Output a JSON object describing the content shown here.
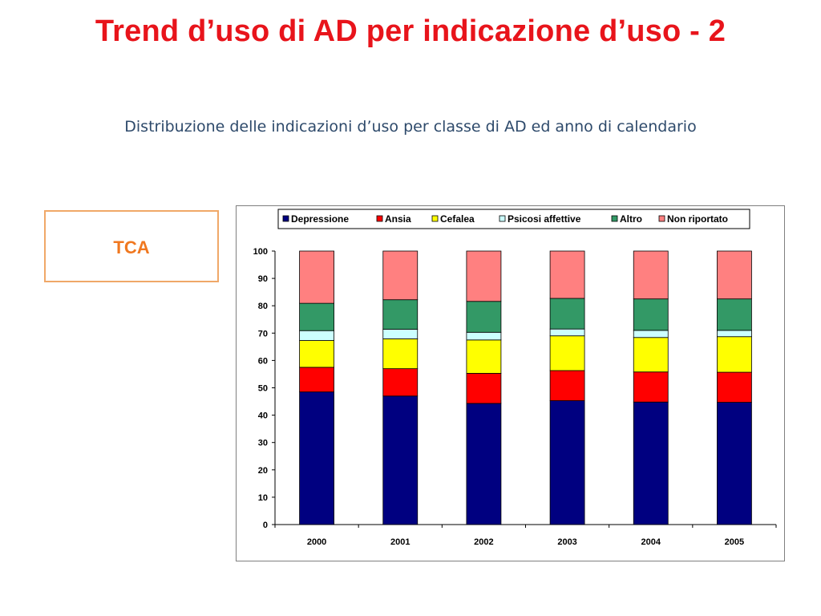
{
  "slide": {
    "title": "Trend d’uso di AD per indicazione d’uso - 2",
    "subtitle": "Distribuzione delle indicazioni d’uso per classe di AD ed anno di calendario",
    "tag_label": "TCA"
  },
  "colors": {
    "title": "#e8141b",
    "subtitle": "#2e4a6b",
    "tag_border": "#f0a868",
    "tag_text": "#f07820"
  },
  "chart_data": {
    "type": "bar",
    "stacked": true,
    "categories": [
      "2000",
      "2001",
      "2002",
      "2003",
      "2004",
      "2005"
    ],
    "ylim": [
      0,
      100
    ],
    "yticks": [
      0,
      10,
      20,
      30,
      40,
      50,
      60,
      70,
      80,
      90,
      100
    ],
    "ytick_labels": [
      "0",
      "10",
      "20",
      "30",
      "40",
      "50",
      "60",
      "70",
      "80",
      "90",
      "100"
    ],
    "grid": false,
    "legend_position": "top",
    "series": [
      {
        "name": "Depressione",
        "color": "#000080",
        "values": [
          48.5,
          47.0,
          44.3,
          45.3,
          44.8,
          44.7
        ]
      },
      {
        "name": "Ansia",
        "color": "#ff0000",
        "values": [
          9.0,
          10.0,
          11.0,
          11.0,
          11.0,
          11.0
        ]
      },
      {
        "name": "Cefalea",
        "color": "#ffff00",
        "values": [
          9.8,
          10.9,
          12.2,
          12.7,
          12.6,
          13.0
        ]
      },
      {
        "name": "Psicosi affettive",
        "color": "#ccffff",
        "values": [
          3.6,
          3.5,
          2.8,
          2.5,
          2.6,
          2.3
        ]
      },
      {
        "name": "Altro",
        "color": "#339966",
        "values": [
          10.0,
          10.8,
          11.3,
          11.2,
          11.5,
          11.5
        ]
      },
      {
        "name": "Non riportato",
        "color": "#ff8080",
        "values": [
          19.1,
          17.8,
          18.4,
          17.3,
          17.5,
          17.5
        ]
      }
    ]
  }
}
